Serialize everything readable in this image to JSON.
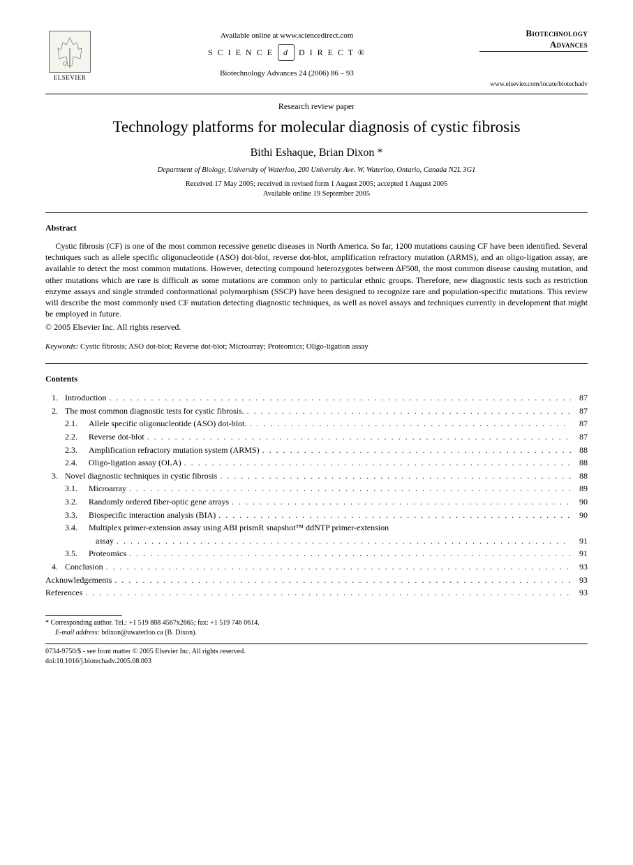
{
  "header": {
    "elsevier_label": "ELSEVIER",
    "available_online": "Available online at www.sciencedirect.com",
    "sciencedirect_left": "S C I E N C E",
    "sciencedirect_logo": "d",
    "sciencedirect_right": "D I R E C T ®",
    "journal_ref": "Biotechnology Advances 24 (2006) 86 – 93",
    "journal_name_1": "Biotechnology",
    "journal_name_2": "Advances",
    "journal_url": "www.elsevier.com/locate/biotechadv"
  },
  "paper_type": "Research review paper",
  "title": "Technology platforms for molecular diagnosis of cystic fibrosis",
  "authors": "Bithi Eshaque, Brian Dixon *",
  "affiliation": "Department of Biology, University of Waterloo, 200 University Ave. W. Waterloo, Ontario, Canada N2L 3G1",
  "dates_line1": "Received 17 May 2005; received in revised form 1 August 2005; accepted 1 August 2005",
  "dates_line2": "Available online 19 September 2005",
  "abstract_heading": "Abstract",
  "abstract_body": "Cystic fibrosis (CF) is one of the most common recessive genetic diseases in North America. So far, 1200 mutations causing CF have been identified. Several techniques such as allele specific oligonucleotide (ASO) dot-blot, reverse dot-blot, amplification refractory mutation (ARMS), and an oligo-ligation assay, are available to detect the most common mutations. However, detecting compound heterozygotes between ΔF508, the most common disease causing mutation, and other mutations which are rare is difficult as some mutations are common only to particular ethnic groups. Therefore, new diagnostic tests such as restriction enzyme assays and single stranded conformational polymorphism (SSCP) have been designed to recognize rare and population-specific mutations. This review will describe the most commonly used CF mutation detecting diagnostic techniques, as well as novel assays and techniques currently in development that might be employed in future.",
  "copyright": "© 2005 Elsevier Inc. All rights reserved.",
  "keywords_label": "Keywords:",
  "keywords_value": " Cystic fibrosis; ASO dot-blot; Reverse dot-blot; Microarray; Proteomics; Oligo-ligation assay",
  "contents_heading": "Contents",
  "toc": [
    {
      "num": "1.",
      "label": "Introduction",
      "page": "87",
      "level": 1
    },
    {
      "num": "2.",
      "label": "The most common diagnostic tests for cystic fibrosis.",
      "page": "87",
      "level": 1
    },
    {
      "num": "2.1.",
      "label": "Allele specific oligonucleotide (ASO) dot-blot.",
      "page": "87",
      "level": 2
    },
    {
      "num": "2.2.",
      "label": "Reverse dot-blot",
      "page": "87",
      "level": 2
    },
    {
      "num": "2.3.",
      "label": "Amplification refractory mutation system (ARMS)",
      "page": "88",
      "level": 2
    },
    {
      "num": "2.4.",
      "label": "Oligo-ligation assay (OLA)",
      "page": "88",
      "level": 2
    },
    {
      "num": "3.",
      "label": "Novel diagnostic techniques in cystic fibrosis",
      "page": "88",
      "level": 1
    },
    {
      "num": "3.1.",
      "label": "Microarray",
      "page": "89",
      "level": 2
    },
    {
      "num": "3.2.",
      "label": "Randomly ordered fiber-optic gene arrays",
      "page": "90",
      "level": 2
    },
    {
      "num": "3.3.",
      "label": "Biospecific interaction analysis (BIA)",
      "page": "90",
      "level": 2
    },
    {
      "num": "3.4.",
      "label": "Multiplex primer-extension assay using ABI prismR snapshot™ ddNTP primer-extension",
      "page": "",
      "level": 2,
      "wrap": true
    },
    {
      "num": "",
      "label": "assay",
      "page": "91",
      "level": 2,
      "cont": true
    },
    {
      "num": "3.5.",
      "label": "Proteomics",
      "page": "91",
      "level": 2
    },
    {
      "num": "4.",
      "label": "Conclusion",
      "page": "93",
      "level": 1
    },
    {
      "num": "",
      "label": "Acknowledgements",
      "page": "93",
      "level": 0
    },
    {
      "num": "",
      "label": "References",
      "page": "93",
      "level": 0
    }
  ],
  "footnote": {
    "corresponding": "* Corresponding author. Tel.: +1 519 888 4567x2665; fax: +1 519 746 0614.",
    "email_label": "E-mail address:",
    "email_value": " bdixon@uwaterloo.ca (B. Dixon)."
  },
  "bottom": {
    "issn": "0734-9750/$ - see front matter © 2005 Elsevier Inc. All rights reserved.",
    "doi": "doi:10.1016/j.biotechadv.2005.08.003"
  }
}
